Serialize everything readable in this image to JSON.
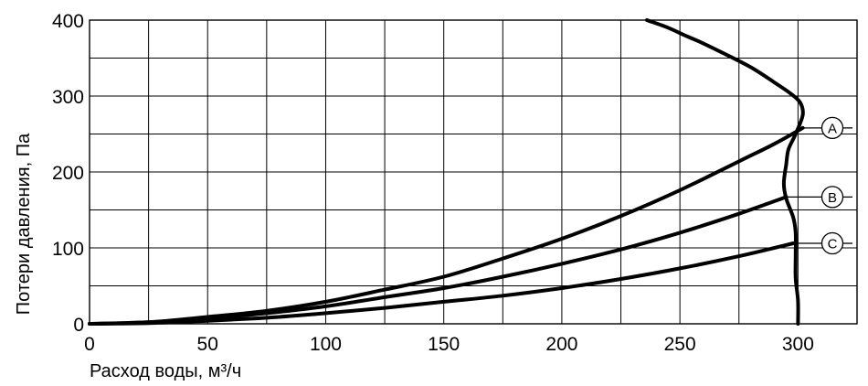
{
  "chart_data": {
    "type": "line",
    "xlabel": "Расход воды, м³/ч",
    "ylabel": "Потери давления, Па",
    "xlim": [
      0,
      325
    ],
    "ylim": [
      0,
      400
    ],
    "x_ticks": [
      0,
      50,
      100,
      150,
      200,
      250,
      300
    ],
    "y_ticks": [
      0,
      100,
      200,
      300,
      400
    ],
    "x_grid_step": 25,
    "y_grid_step": 50,
    "grid": true,
    "series": [
      {
        "name": "A",
        "x": [
          0,
          25,
          50,
          75,
          100,
          125,
          150,
          175,
          200,
          225,
          250,
          275,
          290,
          302
        ],
        "y": [
          0,
          2,
          9,
          17,
          29,
          45,
          62,
          86,
          112,
          142,
          176,
          214,
          237,
          258
        ]
      },
      {
        "name": "B",
        "x": [
          0,
          25,
          50,
          75,
          100,
          125,
          150,
          175,
          200,
          225,
          250,
          275,
          295
        ],
        "y": [
          0,
          2,
          7,
          14,
          23,
          35,
          47,
          62,
          79,
          98,
          120,
          145,
          167
        ]
      },
      {
        "name": "C",
        "x": [
          0,
          25,
          50,
          75,
          100,
          125,
          150,
          175,
          200,
          225,
          250,
          275,
          298
        ],
        "y": [
          0,
          1,
          4,
          8,
          14,
          21,
          29,
          37,
          47,
          59,
          73,
          89,
          106
        ]
      },
      {
        "name": "",
        "x": [
          236,
          245,
          252,
          258,
          268,
          280,
          290,
          297,
          301,
          302,
          299,
          296,
          295,
          294,
          295,
          298,
          299,
          299,
          299,
          300,
          300
        ],
        "y": [
          400,
          390,
          380,
          372,
          357,
          338,
          318,
          303,
          291,
          275,
          250,
          230,
          210,
          185,
          165,
          140,
          120,
          90,
          60,
          30,
          0
        ]
      }
    ],
    "markers": [
      {
        "label": "A",
        "x": 302,
        "y": 258
      },
      {
        "label": "B",
        "x": 295,
        "y": 167
      },
      {
        "label": "C",
        "x": 298,
        "y": 106
      }
    ]
  }
}
